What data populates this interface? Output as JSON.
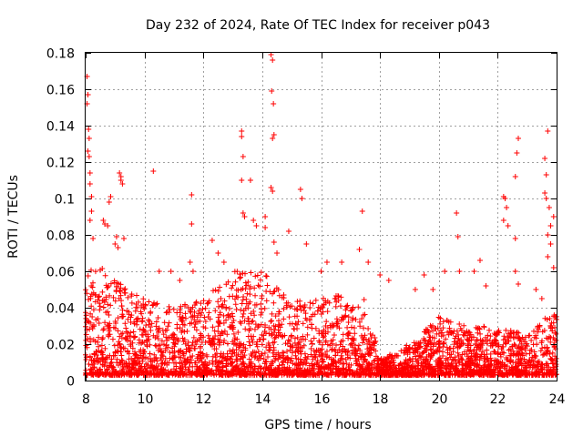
{
  "chart_data": {
    "type": "scatter",
    "title": "Day 232 of 2024, Rate Of TEC Index for receiver p043",
    "xlabel": "GPS time / hours",
    "ylabel": "ROTI / TECUs",
    "xlim": [
      8,
      24
    ],
    "ylim": [
      0,
      0.18
    ],
    "grid": true,
    "legend": "none",
    "marker": "plus",
    "color": "#ff0000",
    "x_ticks": [
      {
        "value": 8,
        "label": "8"
      },
      {
        "value": 10,
        "label": "10"
      },
      {
        "value": 12,
        "label": "12"
      },
      {
        "value": 14,
        "label": "14"
      },
      {
        "value": 16,
        "label": "16"
      },
      {
        "value": 18,
        "label": "18"
      },
      {
        "value": 20,
        "label": "20"
      },
      {
        "value": 22,
        "label": "22"
      },
      {
        "value": 24,
        "label": "24"
      }
    ],
    "y_ticks": [
      {
        "value": 0,
        "label": "0"
      },
      {
        "value": 0.02,
        "label": "0.02"
      },
      {
        "value": 0.04,
        "label": "0.04"
      },
      {
        "value": 0.06,
        "label": "0.06"
      },
      {
        "value": 0.08,
        "label": "0.08"
      },
      {
        "value": 0.1,
        "label": "0.1"
      },
      {
        "value": 0.12,
        "label": "0.12"
      },
      {
        "value": 0.14,
        "label": "0.14"
      },
      {
        "value": 0.16,
        "label": "0.16"
      },
      {
        "value": 0.18,
        "label": "0.18"
      }
    ],
    "dense_band": {
      "description_hours": [
        8,
        24
      ],
      "envelope": [
        {
          "x": 8.0,
          "low": 0.003,
          "high": 0.06
        },
        {
          "x": 8.5,
          "low": 0.003,
          "high": 0.065
        },
        {
          "x": 9.0,
          "low": 0.003,
          "high": 0.055
        },
        {
          "x": 10.0,
          "low": 0.003,
          "high": 0.045
        },
        {
          "x": 11.0,
          "low": 0.003,
          "high": 0.04
        },
        {
          "x": 12.0,
          "low": 0.003,
          "high": 0.045
        },
        {
          "x": 13.0,
          "low": 0.003,
          "high": 0.06
        },
        {
          "x": 14.0,
          "low": 0.003,
          "high": 0.06
        },
        {
          "x": 15.0,
          "low": 0.003,
          "high": 0.045
        },
        {
          "x": 16.0,
          "low": 0.003,
          "high": 0.045
        },
        {
          "x": 17.0,
          "low": 0.003,
          "high": 0.048
        },
        {
          "x": 17.5,
          "low": 0.003,
          "high": 0.045
        },
        {
          "x": 18.0,
          "low": 0.003,
          "high": 0.012
        },
        {
          "x": 19.0,
          "low": 0.003,
          "high": 0.02
        },
        {
          "x": 20.0,
          "low": 0.003,
          "high": 0.035
        },
        {
          "x": 21.0,
          "low": 0.003,
          "high": 0.03
        },
        {
          "x": 22.0,
          "low": 0.003,
          "high": 0.03
        },
        {
          "x": 23.0,
          "low": 0.003,
          "high": 0.025
        },
        {
          "x": 24.0,
          "low": 0.003,
          "high": 0.04
        }
      ]
    },
    "points": [
      [
        8.05,
        0.167
      ],
      [
        8.08,
        0.157
      ],
      [
        8.05,
        0.152
      ],
      [
        8.1,
        0.138
      ],
      [
        8.12,
        0.133
      ],
      [
        8.08,
        0.126
      ],
      [
        8.12,
        0.123
      ],
      [
        8.15,
        0.114
      ],
      [
        8.15,
        0.108
      ],
      [
        8.2,
        0.101
      ],
      [
        8.2,
        0.093
      ],
      [
        8.15,
        0.088
      ],
      [
        8.25,
        0.078
      ],
      [
        8.6,
        0.088
      ],
      [
        8.65,
        0.086
      ],
      [
        8.8,
        0.098
      ],
      [
        8.85,
        0.101
      ],
      [
        8.75,
        0.085
      ],
      [
        9.0,
        0.075
      ],
      [
        9.05,
        0.079
      ],
      [
        9.1,
        0.073
      ],
      [
        9.15,
        0.114
      ],
      [
        9.2,
        0.112
      ],
      [
        9.25,
        0.108
      ],
      [
        9.2,
        0.11
      ],
      [
        9.3,
        0.078
      ],
      [
        10.3,
        0.115
      ],
      [
        10.5,
        0.06
      ],
      [
        10.9,
        0.06
      ],
      [
        11.2,
        0.055
      ],
      [
        11.6,
        0.102
      ],
      [
        11.6,
        0.086
      ],
      [
        11.55,
        0.065
      ],
      [
        11.65,
        0.06
      ],
      [
        12.3,
        0.077
      ],
      [
        12.5,
        0.07
      ],
      [
        12.7,
        0.065
      ],
      [
        13.3,
        0.137
      ],
      [
        13.3,
        0.134
      ],
      [
        13.35,
        0.123
      ],
      [
        13.3,
        0.11
      ],
      [
        13.35,
        0.092
      ],
      [
        13.4,
        0.09
      ],
      [
        13.6,
        0.11
      ],
      [
        13.7,
        0.088
      ],
      [
        13.8,
        0.085
      ],
      [
        14.1,
        0.084
      ],
      [
        14.1,
        0.09
      ],
      [
        14.3,
        0.179
      ],
      [
        14.35,
        0.176
      ],
      [
        14.32,
        0.159
      ],
      [
        14.38,
        0.152
      ],
      [
        14.35,
        0.133
      ],
      [
        14.4,
        0.135
      ],
      [
        14.3,
        0.106
      ],
      [
        14.35,
        0.104
      ],
      [
        14.4,
        0.076
      ],
      [
        14.5,
        0.07
      ],
      [
        14.9,
        0.082
      ],
      [
        15.3,
        0.105
      ],
      [
        15.35,
        0.1
      ],
      [
        15.5,
        0.075
      ],
      [
        16.0,
        0.06
      ],
      [
        16.2,
        0.065
      ],
      [
        16.7,
        0.065
      ],
      [
        17.3,
        0.072
      ],
      [
        17.4,
        0.093
      ],
      [
        17.6,
        0.065
      ],
      [
        18.0,
        0.058
      ],
      [
        18.3,
        0.055
      ],
      [
        19.2,
        0.05
      ],
      [
        19.5,
        0.058
      ],
      [
        19.8,
        0.05
      ],
      [
        20.2,
        0.06
      ],
      [
        20.6,
        0.092
      ],
      [
        20.65,
        0.079
      ],
      [
        20.7,
        0.06
      ],
      [
        21.2,
        0.06
      ],
      [
        21.4,
        0.066
      ],
      [
        21.6,
        0.052
      ],
      [
        22.2,
        0.101
      ],
      [
        22.25,
        0.1
      ],
      [
        22.3,
        0.095
      ],
      [
        22.2,
        0.088
      ],
      [
        22.35,
        0.085
      ],
      [
        22.6,
        0.112
      ],
      [
        22.7,
        0.133
      ],
      [
        22.65,
        0.125
      ],
      [
        22.6,
        0.078
      ],
      [
        22.6,
        0.06
      ],
      [
        22.7,
        0.053
      ],
      [
        23.3,
        0.05
      ],
      [
        23.5,
        0.045
      ],
      [
        23.6,
        0.103
      ],
      [
        23.65,
        0.1
      ],
      [
        23.6,
        0.122
      ],
      [
        23.7,
        0.137
      ],
      [
        23.65,
        0.113
      ],
      [
        23.75,
        0.095
      ],
      [
        23.8,
        0.085
      ],
      [
        23.7,
        0.08
      ],
      [
        23.8,
        0.075
      ],
      [
        23.7,
        0.068
      ],
      [
        23.9,
        0.062
      ],
      [
        23.9,
        0.09
      ]
    ]
  }
}
